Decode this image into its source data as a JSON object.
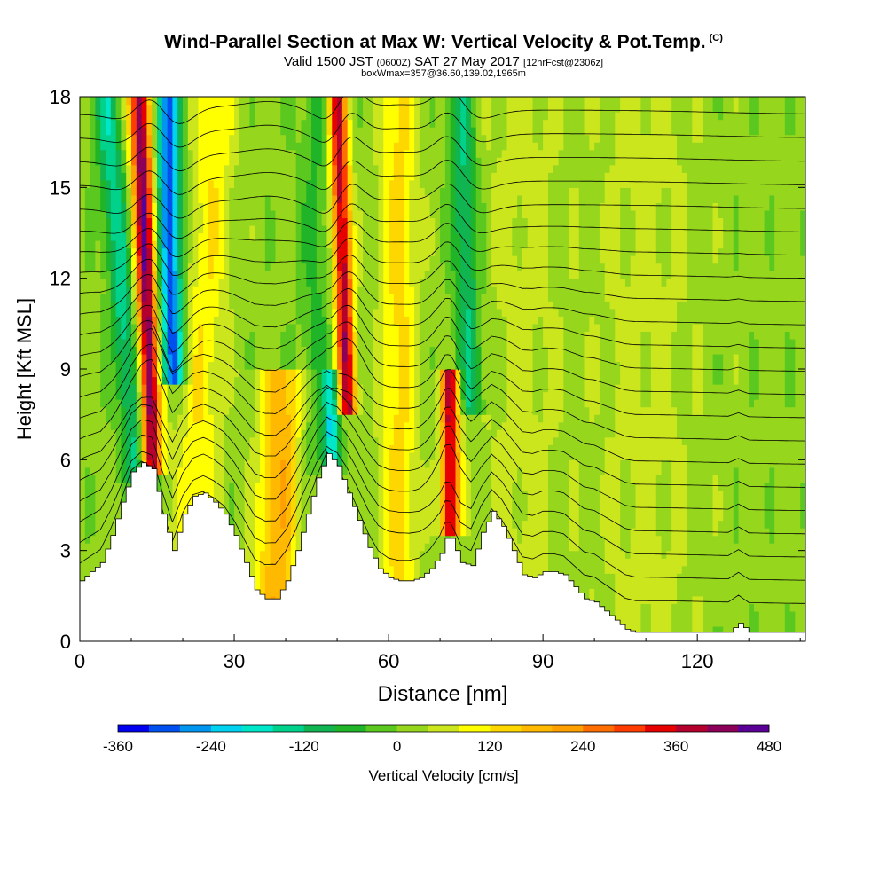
{
  "title": {
    "main": "Wind-Parallel Section at Max W: Vertical Velocity & Pot.Temp.",
    "copyright": "(C)",
    "valid_prefix": "Valid 1500 JST",
    "valid_utc": "(0600Z)",
    "valid_date": "SAT 27 May 2017",
    "forecast": "[12hrFcst@2306z]",
    "box_info": "boxWmax=357@36.60,139.02,1965m"
  },
  "colors": {
    "terrain": "#ffffff",
    "contour": "#000000",
    "palette": [
      "#0000f0",
      "#0050f0",
      "#0096f0",
      "#00d2f0",
      "#00e6c8",
      "#00d28c",
      "#10b450",
      "#20b428",
      "#5ac81e",
      "#96d71e",
      "#cce61e",
      "#ffff00",
      "#ffd700",
      "#ffb900",
      "#ffa000",
      "#ff6e00",
      "#ff3c00",
      "#e60000",
      "#b4002d",
      "#8c005a",
      "#5a0096"
    ]
  },
  "chart_data": {
    "type": "heatmap",
    "xlabel": "Distance [nm]",
    "ylabel": "Height [Kft MSL]",
    "xlim": [
      0,
      141
    ],
    "ylim": [
      0,
      18
    ],
    "xticks": [
      0,
      30,
      60,
      90,
      120
    ],
    "yticks": [
      0,
      3,
      6,
      9,
      12,
      15,
      18
    ],
    "colorbar": {
      "label": "Vertical Velocity [cm/s]",
      "min": -360,
      "max": 480,
      "step": 40,
      "ticks": [
        -360,
        -240,
        -120,
        0,
        120,
        240,
        360,
        480
      ]
    },
    "terrain_profile": [
      [
        0,
        2.0
      ],
      [
        2,
        2.3
      ],
      [
        4,
        2.6
      ],
      [
        6,
        3.5
      ],
      [
        8,
        4.6
      ],
      [
        10,
        5.6
      ],
      [
        12,
        5.9
      ],
      [
        14,
        5.7
      ],
      [
        16,
        4.2
      ],
      [
        18,
        3.0
      ],
      [
        20,
        4.2
      ],
      [
        22,
        4.8
      ],
      [
        24,
        4.9
      ],
      [
        26,
        4.6
      ],
      [
        28,
        4.2
      ],
      [
        30,
        3.5
      ],
      [
        32,
        2.6
      ],
      [
        34,
        1.7
      ],
      [
        36,
        1.4
      ],
      [
        38,
        1.4
      ],
      [
        40,
        2.0
      ],
      [
        42,
        3.0
      ],
      [
        44,
        4.2
      ],
      [
        46,
        5.4
      ],
      [
        48,
        6.2
      ],
      [
        50,
        5.8
      ],
      [
        52,
        4.9
      ],
      [
        54,
        4.0
      ],
      [
        56,
        3.1
      ],
      [
        58,
        2.4
      ],
      [
        60,
        2.1
      ],
      [
        62,
        2.0
      ],
      [
        64,
        2.0
      ],
      [
        66,
        2.1
      ],
      [
        68,
        2.4
      ],
      [
        70,
        2.9
      ],
      [
        71,
        3.4
      ],
      [
        72,
        3.4
      ],
      [
        74,
        2.6
      ],
      [
        76,
        2.5
      ],
      [
        78,
        3.6
      ],
      [
        80,
        4.3
      ],
      [
        82,
        3.8
      ],
      [
        84,
        3.0
      ],
      [
        86,
        2.2
      ],
      [
        88,
        2.1
      ],
      [
        90,
        2.3
      ],
      [
        92,
        2.3
      ],
      [
        94,
        2.2
      ],
      [
        96,
        1.8
      ],
      [
        98,
        1.4
      ],
      [
        100,
        1.3
      ],
      [
        102,
        1.0
      ],
      [
        104,
        0.7
      ],
      [
        106,
        0.4
      ],
      [
        108,
        0.3
      ],
      [
        120,
        0.3
      ],
      [
        126,
        0.3
      ],
      [
        128,
        0.6
      ],
      [
        130,
        0.3
      ],
      [
        141,
        0.3
      ]
    ],
    "w_features": [
      {
        "x": 11,
        "z0": 5.8,
        "z1": 18,
        "value": -160,
        "width": 2.5,
        "tilt": -0.5
      },
      {
        "x": 14,
        "z0": 6.0,
        "z1": 18,
        "value": 420,
        "width": 2.0,
        "tilt": -0.2
      },
      {
        "x": 18,
        "z0": 9.0,
        "z1": 18,
        "value": -320,
        "width": 2.2,
        "tilt": -0.1
      },
      {
        "x": 22,
        "z0": 3.0,
        "z1": 18,
        "value": 100,
        "width": 4.0,
        "tilt": 0.3
      },
      {
        "x": 38,
        "z0": 1.5,
        "z1": 9,
        "value": 180,
        "width": 4.0,
        "tilt": 0.2
      },
      {
        "x": 46,
        "z0": 6.0,
        "z1": 18,
        "value": -60,
        "width": 3.5,
        "tilt": 0.0
      },
      {
        "x": 49,
        "z0": 6.0,
        "z1": 9,
        "value": -200,
        "width": 1.5,
        "tilt": 0.0
      },
      {
        "x": 52,
        "z0": 8.0,
        "z1": 18,
        "value": 380,
        "width": 1.8,
        "tilt": -0.2
      },
      {
        "x": 62,
        "z0": 2.0,
        "z1": 18,
        "value": 120,
        "width": 3.5,
        "tilt": 0.0
      },
      {
        "x": 72,
        "z0": 4.0,
        "z1": 9,
        "value": 360,
        "width": 1.8,
        "tilt": 0.0
      },
      {
        "x": 76,
        "z0": 8.0,
        "z1": 18,
        "value": -140,
        "width": 2.5,
        "tilt": -0.2
      },
      {
        "x": 86,
        "z0": 2.0,
        "z1": 18,
        "value": 40,
        "width": 8.0,
        "tilt": 0.0
      },
      {
        "x": 110,
        "z0": 0.5,
        "z1": 18,
        "value": 40,
        "width": 10.0,
        "tilt": 0.0
      }
    ],
    "theta_levels_count": 22
  }
}
